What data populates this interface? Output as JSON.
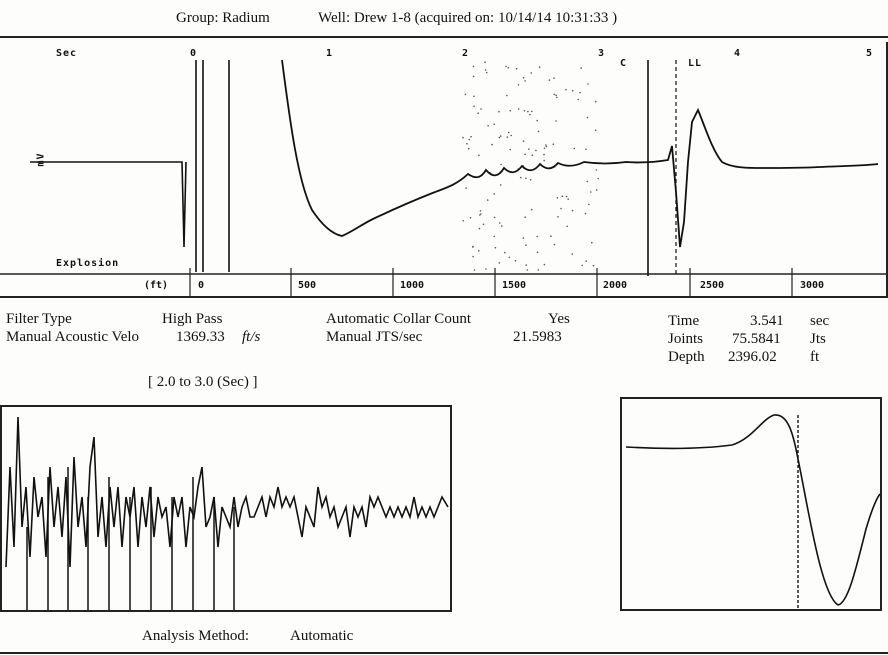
{
  "header": {
    "group": "Group: Radium",
    "well": "Well: Drew 1-8 (acquired on: 10/14/14 10:31:33 )"
  },
  "main_plot": {
    "sec_label": "Sec",
    "mv_label": "mV",
    "explosion_label": "Explosion",
    "ft_label": "(ft)",
    "collar_label": "C",
    "ll_label": "LL",
    "top_ticks": [
      "0",
      "1",
      "2",
      "3",
      "4",
      "5"
    ],
    "bottom_ticks": [
      "0",
      "500",
      "1000",
      "1500",
      "2000",
      "2500",
      "3000"
    ]
  },
  "info": {
    "filter_type_label": "Filter Type",
    "filter_type_value": "High Pass",
    "velocity_label": "Manual Acoustic Velo",
    "velocity_value": "1369.33",
    "velocity_unit": "ft/s",
    "collar_count_label": "Automatic Collar Count",
    "collar_count_value": "Yes",
    "jts_label": "Manual JTS/sec",
    "jts_value": "21.5983",
    "time_label": "Time",
    "time_value": "3.541",
    "time_unit": "sec",
    "joints_label": "Joints",
    "joints_value": "75.5841",
    "joints_unit": "Jts",
    "depth_label": "Depth",
    "depth_value": "2396.02",
    "depth_unit": "ft"
  },
  "zoom": {
    "range_label": "[ 2.0  to  3.0 (Sec) ]"
  },
  "footer": {
    "analysis_label": "Analysis Method:",
    "analysis_value": "Automatic"
  }
}
